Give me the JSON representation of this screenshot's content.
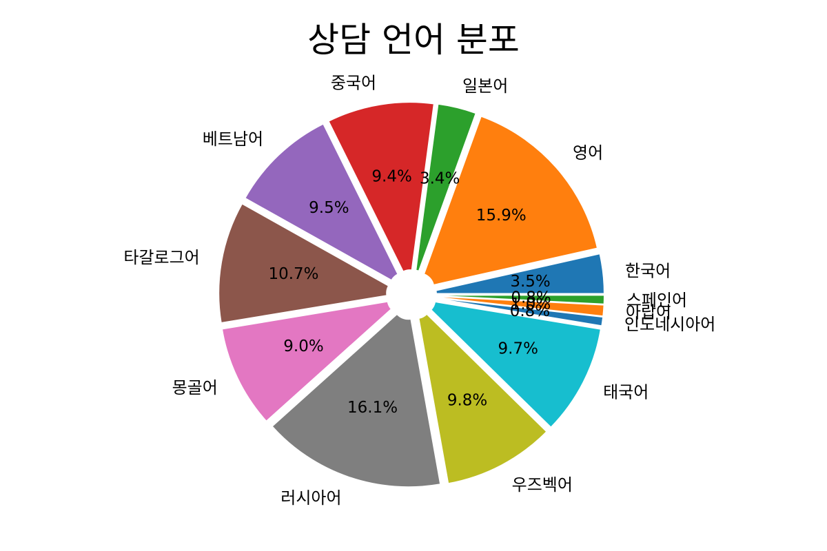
{
  "chart_data": {
    "type": "pie",
    "title": "상담 언어 분포",
    "categories": [
      "한국어",
      "영어",
      "일본어",
      "중국어",
      "베트남어",
      "타갈로그어",
      "몽골어",
      "러시아어",
      "우즈벡어",
      "태국어",
      "인도네시아어",
      "아랍어",
      "스페인어"
    ],
    "values": [
      3.5,
      15.9,
      3.4,
      9.4,
      9.5,
      10.7,
      9.0,
      16.1,
      9.8,
      9.7,
      0.8,
      1.0,
      0.8
    ],
    "pct_labels": [
      "3.5%",
      "15.9%",
      "3.4%",
      "9.4%",
      "9.5%",
      "10.7%",
      "9.0%",
      "16.1%",
      "9.8%",
      "9.7%",
      "0.8%",
      "1.0%",
      "0.8%"
    ],
    "colors": [
      "#1f77b4",
      "#ff7f0e",
      "#2ca02c",
      "#d62728",
      "#9467bd",
      "#8c564b",
      "#e377c2",
      "#7f7f7f",
      "#bcbd22",
      "#17becf",
      "#1f77b4",
      "#ff7f0e",
      "#2ca02c"
    ],
    "start_angle_deg": 0,
    "direction": "counterclockwise",
    "exploded": true,
    "legend": "none"
  }
}
